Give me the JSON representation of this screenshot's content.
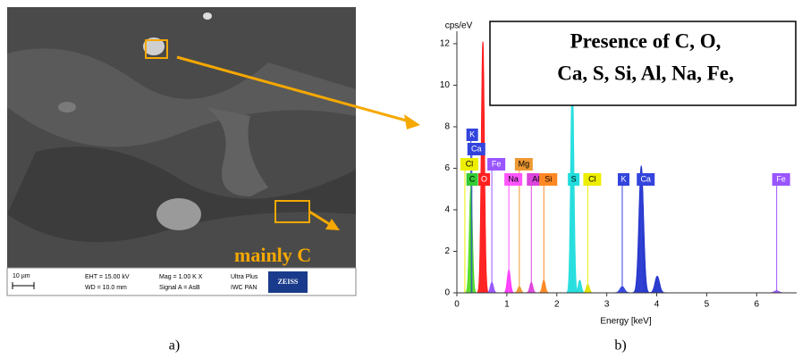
{
  "panel_a": {
    "scale_bar": "10 µm",
    "eht": "EHT = 15.00 kV",
    "wd": "WD = 10.0 mm",
    "mag": "Mag =  1.00 K X",
    "signal": "Signal A = AsB",
    "instrument": "Ultra Plus",
    "lab": "IWC PAN",
    "brand": "ZEISS",
    "annotation": "mainly C",
    "caption": "a)"
  },
  "chart_data": {
    "type": "spectrum",
    "caption": "b)",
    "ylabel": "cps/eV",
    "xlabel": "Energy [keV]",
    "annotation_lines": [
      "Presence of C, O,",
      "Ca, S, Si, Al, Na, Fe,"
    ],
    "xlim": [
      0,
      6.8
    ],
    "xticks": [
      0,
      1,
      2,
      3,
      4,
      5,
      6
    ],
    "ylim": [
      0,
      12.6
    ],
    "yticks": [
      0,
      2,
      4,
      6,
      8,
      10,
      12
    ],
    "series": [
      {
        "name": "C",
        "color": "#55dd22",
        "x": [
          0.28
        ],
        "values": [
          5.0
        ]
      },
      {
        "name": "O",
        "color": "#ff1a1a",
        "x": [
          0.52
        ],
        "values": [
          12.1
        ]
      },
      {
        "name": "Fe",
        "color": "#9955ff",
        "x": [
          0.7
        ],
        "values": [
          0.5
        ]
      },
      {
        "name": "Na",
        "color": "#ff33ff",
        "x": [
          1.04
        ],
        "values": [
          1.1
        ]
      },
      {
        "name": "Mg",
        "color": "#ee9933",
        "x": [
          1.25
        ],
        "values": [
          0.3
        ]
      },
      {
        "name": "Al",
        "color": "#dd44dd",
        "x": [
          1.49
        ],
        "values": [
          0.5
        ]
      },
      {
        "name": "Si",
        "color": "#ff8822",
        "x": [
          1.74
        ],
        "values": [
          0.6
        ]
      },
      {
        "name": "S",
        "color": "#22dddd",
        "x": [
          2.31,
          2.46
        ],
        "values": [
          10.5,
          0.6
        ]
      },
      {
        "name": "Cl",
        "color": "#dddd00",
        "x": [
          2.62
        ],
        "values": [
          0.4
        ]
      },
      {
        "name": "K",
        "color": "#3344dd",
        "x": [
          3.31
        ],
        "values": [
          0.3
        ]
      },
      {
        "name": "Ca",
        "color": "#2233cc",
        "x": [
          3.69,
          4.01
        ],
        "values": [
          6.1,
          0.8
        ]
      },
      {
        "name": "Fe",
        "color": "#9955ff",
        "x": [
          6.4
        ],
        "values": [
          0.1
        ]
      }
    ],
    "element_lines": [
      {
        "name": "K",
        "x": 0.28,
        "color": "#3344dd"
      },
      {
        "name": "Ca",
        "x": 0.3,
        "color": "#3344dd"
      },
      {
        "name": "Cl",
        "x": 0.16,
        "color": "#eeee00"
      },
      {
        "name": "Fe",
        "x": 0.7,
        "color": "#9955ff"
      },
      {
        "name": "Mg",
        "x": 1.25,
        "color": "#ee9933"
      },
      {
        "name": "C",
        "x": 0.28,
        "color": "#33cc33"
      },
      {
        "name": "O",
        "x": 0.52,
        "color": "#ff2020"
      },
      {
        "name": "Na",
        "x": 1.04,
        "color": "#ff55ff"
      },
      {
        "name": "Al",
        "x": 1.49,
        "color": "#dd44dd"
      },
      {
        "name": "Si",
        "x": 1.74,
        "color": "#ff8822"
      },
      {
        "name": "S",
        "x": 2.31,
        "color": "#22dddd"
      },
      {
        "name": "Cl",
        "x": 2.62,
        "color": "#eeee00"
      },
      {
        "name": "K",
        "x": 3.31,
        "color": "#3344dd"
      },
      {
        "name": "Ca",
        "x": 3.69,
        "color": "#3344dd"
      },
      {
        "name": "Fe",
        "x": 6.4,
        "color": "#9955ff"
      }
    ]
  }
}
